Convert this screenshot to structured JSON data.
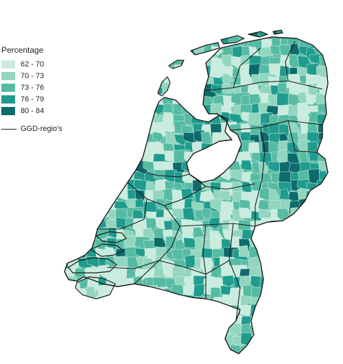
{
  "legend": {
    "title": "Percentage",
    "classes": [
      {
        "label": "62 - 70",
        "color": "#c9ecdf"
      },
      {
        "label": "70 - 73",
        "color": "#93d6c0"
      },
      {
        "label": "73 - 76",
        "color": "#56bba3"
      },
      {
        "label": "76 - 79",
        "color": "#1f9c8e"
      },
      {
        "label": "80 - 84",
        "color": "#0d6b6c"
      }
    ],
    "boundary_label": "GGD-regio's"
  },
  "colors": {
    "water": "#ffffff",
    "boundary": "#1a1a1a",
    "municipality_border": "#d9f0ea"
  }
}
